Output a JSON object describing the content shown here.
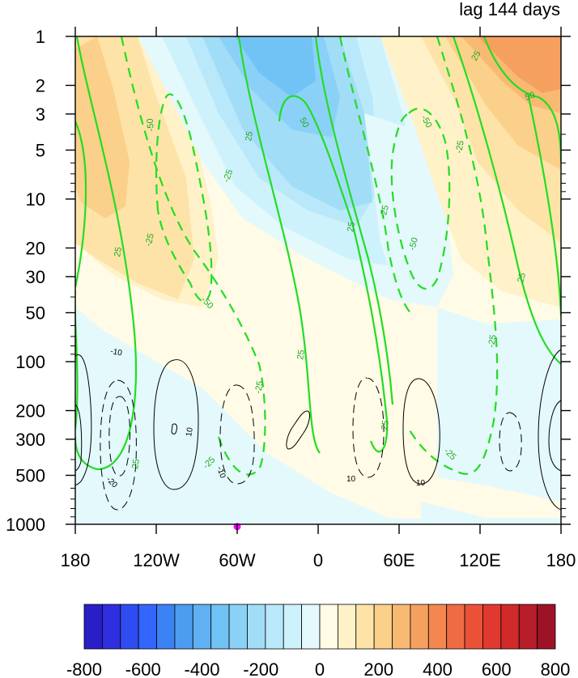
{
  "chart_data": {
    "type": "heatmap",
    "title_right": "lag 144 days",
    "x": {
      "ticks": [
        -180,
        -120,
        -60,
        0,
        60,
        120,
        180
      ],
      "tick_labels": [
        "180",
        "120W",
        "60W",
        "0",
        "60E",
        "120E",
        "180"
      ],
      "range": [
        -180,
        180
      ]
    },
    "y": {
      "scale": "log",
      "reversed": true,
      "range": [
        1,
        1000
      ],
      "ticks": [
        1,
        2,
        3,
        5,
        10,
        20,
        30,
        50,
        100,
        200,
        300,
        500,
        1000
      ],
      "tick_labels": [
        "1",
        "2",
        "3",
        "5",
        "10",
        "20",
        "30",
        "50",
        "100",
        "200",
        "300",
        "500",
        "1000"
      ]
    },
    "colorbar": {
      "levels": [
        -800,
        -750,
        -700,
        -650,
        -600,
        -550,
        -500,
        -450,
        -400,
        -350,
        -300,
        -250,
        -200,
        -150,
        -100,
        -50,
        0,
        50,
        100,
        150,
        200,
        250,
        300,
        350,
        400,
        450,
        500,
        550,
        600,
        650,
        700,
        750,
        800
      ],
      "tick_labels": [
        "-800",
        "-600",
        "-400",
        "-200",
        "0",
        "200",
        "400",
        "600",
        "800"
      ],
      "tick_values": [
        -800,
        -600,
        -400,
        -200,
        0,
        200,
        400,
        600,
        800
      ],
      "colors": [
        "#2a1fc6",
        "#2f2fe0",
        "#2f4cf0",
        "#3366ff",
        "#3b82f5",
        "#4c9df0",
        "#5fb1f3",
        "#72c3f5",
        "#8bd1f7",
        "#a2ddf8",
        "#b8e8f9",
        "#cef2fb",
        "#e4f9fc",
        "#fffbe6",
        "#fff1c8",
        "#fde3a8",
        "#fbd08a",
        "#f8b973",
        "#f6a060",
        "#f3874f",
        "#ef6c42",
        "#ea5238",
        "#e03a30",
        "#d02a2a",
        "#b81d2a",
        "#9c1327"
      ]
    },
    "contour_labels_green": [
      "25",
      "-25",
      "50",
      "-50"
    ],
    "contour_labels_black": [
      "10",
      "-10"
    ],
    "marker": {
      "lon": -60,
      "p": 850,
      "color": "#ff00ff"
    },
    "grid": false,
    "legend": "colorbar-bottom"
  }
}
